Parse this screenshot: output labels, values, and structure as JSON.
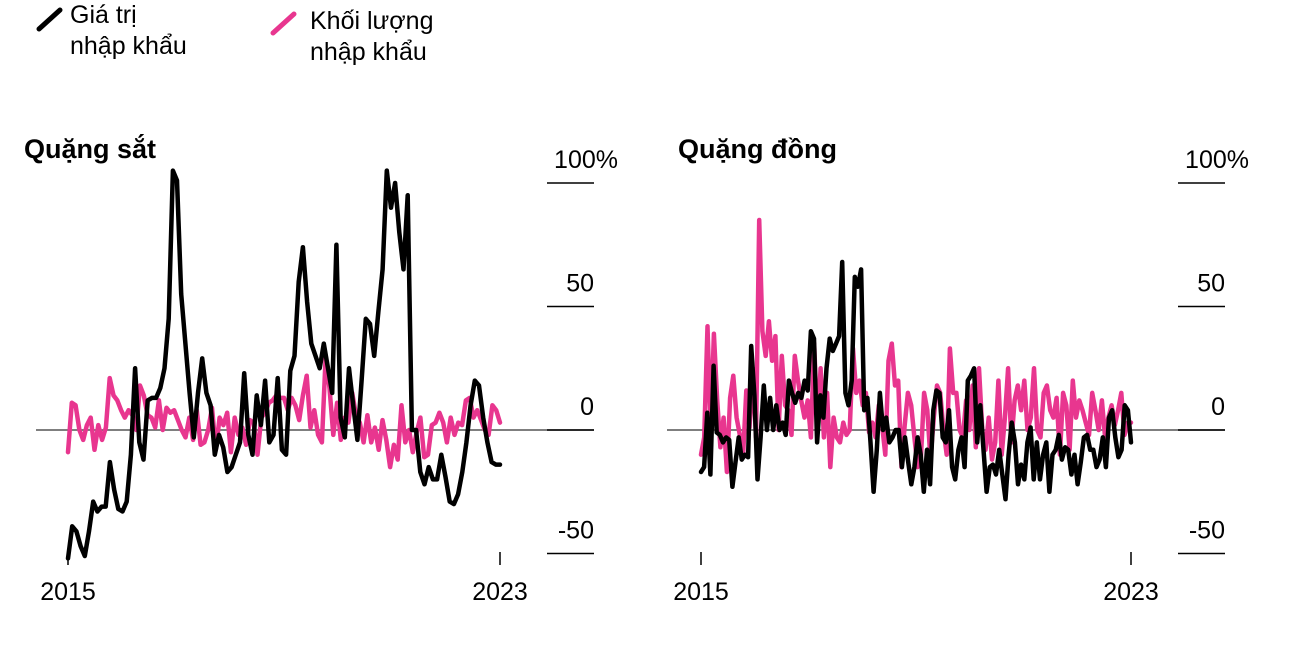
{
  "legend": {
    "items": [
      {
        "label_line1": "Giá trị",
        "label_line2": "nhập khẩu",
        "color": "#000000"
      },
      {
        "label_line1": "Khối lượng",
        "label_line2": "nhập khẩu",
        "color": "#E8368F"
      }
    ]
  },
  "colors": {
    "value": "#000000",
    "volume": "#E8368F",
    "zero_line": "#555555",
    "gridtick": "#000000"
  },
  "chart_data": [
    {
      "type": "line",
      "title": "Quặng sắt",
      "xlabel": "",
      "ylabel": "",
      "x_tick_labels": [
        "2015",
        "2023"
      ],
      "x_range": [
        2015,
        2023
      ],
      "y_tick_labels": [
        "100%",
        "50",
        "0",
        "-50"
      ],
      "y_ticks": [
        100,
        50,
        0,
        -50
      ],
      "ylim": [
        -50,
        100
      ],
      "grid": false,
      "legend_position": "top-left",
      "series": [
        {
          "name": "Giá trị nhập khẩu",
          "color": "#000000",
          "x_step_months": 1,
          "values": [
            -52,
            -39,
            -41,
            -47,
            -51,
            -41,
            -29,
            -33,
            -31,
            -31,
            -13,
            -24,
            -32,
            -33,
            -29,
            -10,
            25,
            -5,
            -12,
            12,
            13,
            13,
            17,
            25,
            45,
            105,
            101,
            55,
            35,
            15,
            -3,
            15,
            29,
            15,
            10,
            -10,
            -2,
            -7,
            -17,
            -15,
            -10,
            -5,
            23,
            -2,
            -10,
            14,
            2,
            20,
            -5,
            -2,
            21,
            -8,
            -10,
            24,
            30,
            60,
            74,
            52,
            35,
            30,
            25,
            35,
            25,
            15,
            75,
            5,
            -3,
            25,
            10,
            -4,
            20,
            45,
            43,
            30,
            48,
            65,
            105,
            90,
            100,
            80,
            65,
            95,
            0,
            0,
            -17,
            -22,
            -15,
            -20,
            -20,
            -10,
            -19,
            -29,
            -30,
            -26,
            -17,
            -5,
            10,
            20,
            18,
            5,
            -5,
            -13,
            -14,
            -14
          ]
        },
        {
          "name": "Khối lượng nhập khẩu",
          "color": "#E8368F",
          "x_step_months": 1,
          "values": [
            -9,
            11,
            10,
            0,
            -4,
            2,
            5,
            -8,
            2,
            -4,
            1,
            21,
            14,
            12,
            8,
            5,
            8,
            6,
            0,
            18,
            14,
            6,
            5,
            1,
            12,
            0,
            9,
            7,
            8,
            4,
            0,
            -3,
            5,
            -4,
            8,
            -6,
            -5,
            0,
            9,
            -8,
            5,
            2,
            7,
            -9,
            5,
            -2,
            1,
            -6,
            4,
            3,
            -10,
            5,
            7,
            11,
            12,
            14,
            13,
            13,
            8,
            13,
            10,
            4,
            14,
            22,
            1,
            8,
            -2,
            -5,
            30,
            17,
            -2,
            11,
            -4,
            5,
            3,
            15,
            6,
            3,
            -5,
            6,
            -5,
            1,
            -8,
            4,
            -4,
            -15,
            -6,
            -12,
            10,
            -5,
            0,
            -9,
            -1,
            5,
            -11,
            -10,
            2,
            3,
            7,
            3,
            -5,
            5,
            -2,
            3,
            2,
            12,
            13,
            5,
            8,
            4,
            0,
            -2,
            10,
            8,
            3
          ]
        }
      ]
    },
    {
      "type": "line",
      "title": "Quặng đồng",
      "xlabel": "",
      "ylabel": "",
      "x_tick_labels": [
        "2015",
        "2023"
      ],
      "x_range": [
        2015,
        2023
      ],
      "y_tick_labels": [
        "100%",
        "50",
        "0",
        "-50"
      ],
      "y_ticks": [
        100,
        50,
        0,
        -50
      ],
      "ylim": [
        -50,
        100
      ],
      "grid": false,
      "legend_position": "top-left",
      "series": [
        {
          "name": "Giá trị nhập khẩu",
          "color": "#000000",
          "x_step_months": 1,
          "values": [
            -17,
            -15,
            7,
            -18,
            26,
            -1,
            -2,
            -5,
            -3,
            -4,
            -23,
            -13,
            -3,
            -12,
            -10,
            -11,
            34,
            14,
            -20,
            -3,
            18,
            0,
            13,
            0,
            10,
            0,
            3,
            -2,
            20,
            15,
            11,
            15,
            13,
            20,
            16,
            40,
            37,
            -5,
            14,
            5,
            25,
            37,
            32,
            35,
            38,
            68,
            15,
            10,
            20,
            62,
            58,
            65,
            8,
            13,
            -5,
            -25,
            -8,
            15,
            0,
            5,
            -5,
            -3,
            0,
            0,
            -15,
            -3,
            -13,
            -22,
            -15,
            -3,
            -10,
            -25,
            -8,
            -22,
            8,
            16,
            15,
            -3,
            -5,
            8,
            -15,
            -20,
            -8,
            -3,
            -15,
            20,
            22,
            25,
            -5,
            10,
            -8,
            -25,
            -15,
            -14,
            -18,
            -8,
            -18,
            -28,
            -10,
            3,
            -5,
            -22,
            -14,
            -20,
            -5,
            1,
            -20,
            -5,
            -20,
            -10,
            -5,
            -25,
            -10,
            -8,
            -2,
            -12,
            -7,
            -8,
            -18,
            -10,
            -22,
            -13,
            -3,
            -2,
            -8,
            -8,
            -15,
            -12,
            -3,
            -15,
            5,
            8,
            -3,
            -11,
            -8,
            10,
            8,
            -5
          ]
        },
        {
          "name": "Khối lượng nhập khẩu",
          "color": "#E8368F",
          "x_step_months": 1,
          "values": [
            -10,
            -3,
            42,
            -1,
            39,
            12,
            -7,
            5,
            -17,
            13,
            22,
            5,
            -2,
            -11,
            16,
            1,
            25,
            -3,
            85,
            40,
            30,
            44,
            28,
            38,
            0,
            30,
            10,
            8,
            -2,
            30,
            20,
            12,
            5,
            12,
            -3,
            35,
            0,
            25,
            -3,
            15,
            -15,
            5,
            -3,
            -5,
            3,
            -2,
            0,
            33,
            15,
            20,
            10,
            15,
            -1,
            3,
            -3,
            10,
            2,
            -10,
            28,
            35,
            18,
            20,
            -15,
            2,
            15,
            10,
            -3,
            -15,
            -12,
            15,
            8,
            -12,
            5,
            18,
            15,
            0,
            -10,
            33,
            15,
            15,
            0,
            -3,
            12,
            0,
            18,
            -7,
            25,
            0,
            -8,
            5,
            -12,
            -5,
            20,
            -10,
            5,
            25,
            -5,
            12,
            18,
            8,
            20,
            0,
            5,
            25,
            0,
            -3,
            15,
            18,
            8,
            5,
            13,
            -10,
            15,
            10,
            -8,
            20,
            5,
            12,
            8,
            3,
            -2,
            15,
            8,
            0,
            12,
            -3,
            5,
            10,
            2,
            8,
            15,
            -2,
            3,
            3
          ]
        }
      ]
    }
  ]
}
